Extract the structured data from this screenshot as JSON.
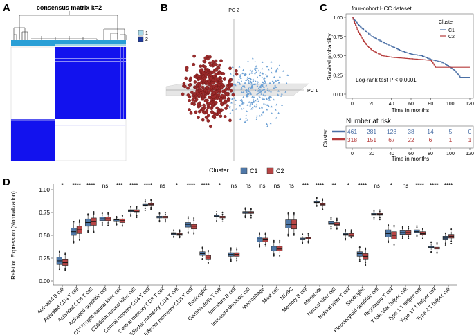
{
  "panels": {
    "a": {
      "letter": "A",
      "title": "consensus matrix k=2",
      "legend": [
        "1",
        "2"
      ],
      "colors": {
        "c1": "#a6d8e8",
        "c2": "#1f3b9e",
        "block": "#1010ee"
      }
    },
    "b": {
      "letter": "B",
      "pc1": "PC 1",
      "pc2": "PC 2",
      "colors": {
        "c1": "#6a9fd4",
        "c2": "#9b2a2a"
      }
    },
    "c": {
      "letter": "C",
      "title": "four-cohort HCC dataset",
      "ylabel": "Survival probability",
      "xlabel": "Time in months",
      "legend_title": "Cluster",
      "legend": [
        "C1",
        "C2"
      ],
      "pvalue": "Log-rank test P < 0.0001",
      "yticks": [
        "0.00",
        "0.25",
        "0.50",
        "0.75",
        "1.00"
      ],
      "xticks": [
        "0",
        "20",
        "40",
        "60",
        "80",
        "100",
        "120"
      ],
      "risk_title": "Number at risk",
      "risk_ylabel": "Cluster",
      "risk_c1": [
        "461",
        "281",
        "128",
        "38",
        "14",
        "5",
        "0"
      ],
      "risk_c2": [
        "318",
        "151",
        "67",
        "22",
        "6",
        "1",
        "1"
      ],
      "colors": {
        "c1": "#4a6fa5",
        "c2": "#b53a3a"
      }
    }
  },
  "chart_data": [
    {
      "type": "line",
      "title": "four-cohort HCC dataset",
      "xlabel": "Time in months",
      "ylabel": "Survival probability",
      "xlim": [
        0,
        120
      ],
      "ylim": [
        0,
        1
      ],
      "series": [
        {
          "name": "C1",
          "x": [
            0,
            5,
            10,
            20,
            30,
            40,
            50,
            60,
            70,
            80,
            90,
            100,
            105,
            110,
            120
          ],
          "y": [
            1.0,
            0.92,
            0.85,
            0.75,
            0.68,
            0.62,
            0.56,
            0.52,
            0.5,
            0.45,
            0.42,
            0.35,
            0.3,
            0.22,
            0.22
          ]
        },
        {
          "name": "C2",
          "x": [
            0,
            5,
            10,
            15,
            20,
            30,
            40,
            50,
            60,
            70,
            80,
            85,
            120
          ],
          "y": [
            1.0,
            0.84,
            0.72,
            0.63,
            0.57,
            0.5,
            0.48,
            0.47,
            0.46,
            0.45,
            0.44,
            0.35,
            0.35
          ]
        }
      ]
    },
    {
      "type": "box",
      "title": "",
      "ylabel": "Relation Expression (Normalization)",
      "legend_title": "Cluster",
      "legend": [
        "C1",
        "C2"
      ],
      "ylim": [
        0,
        1
      ],
      "yticks": [
        "0.00",
        "0.25",
        "0.50",
        "0.75",
        "1.00"
      ],
      "colors": {
        "c1": "#4f78a8",
        "c2": "#b84545"
      },
      "categories": [
        {
          "name": "Activated B cell",
          "sig": "*",
          "c1": [
            0.14,
            0.18,
            0.22,
            0.26,
            0.3
          ],
          "c2": [
            0.14,
            0.17,
            0.2,
            0.24,
            0.28
          ]
        },
        {
          "name": "Activated CD4 T cell",
          "sig": "****",
          "c1": [
            0.44,
            0.5,
            0.54,
            0.58,
            0.62
          ],
          "c2": [
            0.47,
            0.52,
            0.56,
            0.6,
            0.64
          ]
        },
        {
          "name": "Activated CD8 T cell",
          "sig": "****",
          "c1": [
            0.55,
            0.6,
            0.64,
            0.68,
            0.72
          ],
          "c2": [
            0.56,
            0.61,
            0.65,
            0.69,
            0.73
          ]
        },
        {
          "name": "Activated dendritic cell",
          "sig": "ns",
          "c1": [
            0.64,
            0.66,
            0.68,
            0.7,
            0.72
          ],
          "c2": [
            0.64,
            0.66,
            0.68,
            0.7,
            0.72
          ]
        },
        {
          "name": "CD56bright natural killer cell",
          "sig": "***",
          "c1": [
            0.63,
            0.65,
            0.67,
            0.68,
            0.69
          ],
          "c2": [
            0.62,
            0.64,
            0.66,
            0.68,
            0.69
          ]
        },
        {
          "name": "CD56dim natural killer cell",
          "sig": "****",
          "c1": [
            0.74,
            0.76,
            0.77,
            0.78,
            0.8
          ],
          "c2": [
            0.72,
            0.75,
            0.76,
            0.78,
            0.79
          ]
        },
        {
          "name": "Central memory CD4 T cell",
          "sig": "****",
          "c1": [
            0.8,
            0.82,
            0.83,
            0.84,
            0.86
          ],
          "c2": [
            0.81,
            0.83,
            0.84,
            0.85,
            0.87
          ]
        },
        {
          "name": "Central memory CD8 T cell",
          "sig": "ns",
          "c1": [
            0.67,
            0.69,
            0.7,
            0.71,
            0.72
          ],
          "c2": [
            0.67,
            0.69,
            0.7,
            0.71,
            0.72
          ]
        },
        {
          "name": "Effector memeory CD4 T cell",
          "sig": "*",
          "c1": [
            0.49,
            0.51,
            0.52,
            0.53,
            0.55
          ],
          "c2": [
            0.49,
            0.5,
            0.51,
            0.52,
            0.54
          ]
        },
        {
          "name": "Effector memeory CD8 T cell",
          "sig": "****",
          "c1": [
            0.55,
            0.59,
            0.62,
            0.64,
            0.68
          ],
          "c2": [
            0.53,
            0.57,
            0.6,
            0.62,
            0.66
          ]
        },
        {
          "name": "Eosinophil",
          "sig": "****",
          "c1": [
            0.26,
            0.28,
            0.3,
            0.32,
            0.35
          ],
          "c2": [
            0.22,
            0.24,
            0.26,
            0.28,
            0.31
          ]
        },
        {
          "name": "Gamma delta T cell",
          "sig": "*",
          "c1": [
            0.68,
            0.7,
            0.71,
            0.72,
            0.73
          ],
          "c2": [
            0.68,
            0.69,
            0.7,
            0.71,
            0.73
          ]
        },
        {
          "name": "Immature  B cell",
          "sig": "ns",
          "c1": [
            0.24,
            0.27,
            0.29,
            0.31,
            0.34
          ],
          "c2": [
            0.25,
            0.27,
            0.29,
            0.31,
            0.34
          ]
        },
        {
          "name": "Immature dendritic cell",
          "sig": "ns",
          "c1": [
            0.72,
            0.74,
            0.75,
            0.76,
            0.78
          ],
          "c2": [
            0.72,
            0.74,
            0.75,
            0.76,
            0.78
          ]
        },
        {
          "name": "Macrophage",
          "sig": "ns",
          "c1": [
            0.4,
            0.43,
            0.46,
            0.48,
            0.51
          ],
          "c2": [
            0.4,
            0.43,
            0.45,
            0.47,
            0.5
          ]
        },
        {
          "name": "Mast cell",
          "sig": "ns",
          "c1": [
            0.3,
            0.33,
            0.36,
            0.38,
            0.42
          ],
          "c2": [
            0.3,
            0.33,
            0.35,
            0.38,
            0.42
          ]
        },
        {
          "name": "MDSC",
          "sig": "ns",
          "c1": [
            0.52,
            0.58,
            0.62,
            0.67,
            0.72
          ],
          "c2": [
            0.52,
            0.57,
            0.62,
            0.67,
            0.72
          ]
        },
        {
          "name": "Memory B cell",
          "sig": "***",
          "c1": [
            0.43,
            0.45,
            0.46,
            0.47,
            0.49
          ],
          "c2": [
            0.44,
            0.46,
            0.47,
            0.48,
            0.5
          ]
        },
        {
          "name": "Monocyte",
          "sig": "****",
          "c1": [
            0.83,
            0.85,
            0.86,
            0.87,
            0.89
          ],
          "c2": [
            0.81,
            0.83,
            0.84,
            0.85,
            0.87
          ]
        },
        {
          "name": "Natural killer cell",
          "sig": "**",
          "c1": [
            0.6,
            0.62,
            0.63,
            0.65,
            0.67
          ],
          "c2": [
            0.59,
            0.61,
            0.62,
            0.64,
            0.66
          ]
        },
        {
          "name": "Natural killer T cell",
          "sig": "*",
          "c1": [
            0.48,
            0.5,
            0.51,
            0.52,
            0.54
          ],
          "c2": [
            0.48,
            0.49,
            0.5,
            0.52,
            0.53
          ]
        },
        {
          "name": "Neutrophil",
          "sig": "****",
          "c1": [
            0.24,
            0.27,
            0.3,
            0.32,
            0.36
          ],
          "c2": [
            0.2,
            0.24,
            0.27,
            0.3,
            0.33
          ]
        },
        {
          "name": "Plasmacytoid dendritic cell",
          "sig": "ns",
          "c1": [
            0.7,
            0.72,
            0.73,
            0.74,
            0.75
          ],
          "c2": [
            0.7,
            0.72,
            0.73,
            0.74,
            0.75
          ]
        },
        {
          "name": "Regulatory T cell",
          "sig": "*",
          "c1": [
            0.44,
            0.48,
            0.52,
            0.56,
            0.6
          ],
          "c2": [
            0.42,
            0.46,
            0.5,
            0.54,
            0.58
          ]
        },
        {
          "name": "T follicular helper cell",
          "sig": "ns",
          "c1": [
            0.49,
            0.51,
            0.53,
            0.55,
            0.57
          ],
          "c2": [
            0.49,
            0.51,
            0.53,
            0.55,
            0.57
          ]
        },
        {
          "name": "Type 1 T helper cell",
          "sig": "****",
          "c1": [
            0.51,
            0.53,
            0.54,
            0.56,
            0.58
          ],
          "c2": [
            0.49,
            0.51,
            0.52,
            0.54,
            0.56
          ]
        },
        {
          "name": "Type 17 T helper cell",
          "sig": "****",
          "c1": [
            0.34,
            0.36,
            0.37,
            0.38,
            0.4
          ],
          "c2": [
            0.33,
            0.35,
            0.36,
            0.37,
            0.39
          ]
        },
        {
          "name": "Type 2 T helper cell",
          "sig": "****",
          "c1": [
            0.42,
            0.45,
            0.47,
            0.49,
            0.52
          ],
          "c2": [
            0.44,
            0.47,
            0.49,
            0.51,
            0.54
          ]
        }
      ]
    }
  ],
  "panel_d_letter": "D"
}
